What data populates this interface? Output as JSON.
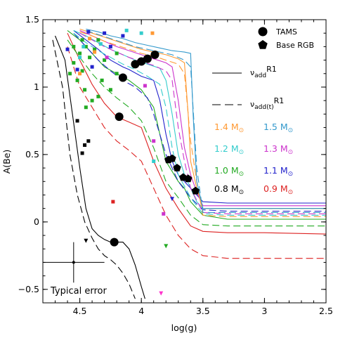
{
  "chart_data": {
    "type": "scatter",
    "title": "",
    "xlabel": "log(g)",
    "ylabel": "A(Be)",
    "xlim": [
      4.8,
      2.5
    ],
    "ylim": [
      -0.6,
      1.5
    ],
    "x_reversed": true,
    "x_ticks": [
      {
        "value": 4.5,
        "label": "4.5"
      },
      {
        "value": 4.0,
        "label": "4"
      },
      {
        "value": 3.5,
        "label": "3.5"
      },
      {
        "value": 3.0,
        "label": "3"
      },
      {
        "value": 2.5,
        "label": "2.5"
      }
    ],
    "y_ticks": [
      {
        "value": 1.5,
        "label": "1.5"
      },
      {
        "value": 1.0,
        "label": "1"
      },
      {
        "value": 0.5,
        "label": "0.5"
      },
      {
        "value": 0.0,
        "label": "0"
      },
      {
        "value": -0.5,
        "label": "−0.5"
      }
    ],
    "legend": {
      "placement": "top-right",
      "markers": [
        {
          "label": "TAMS",
          "symbol": "circle"
        },
        {
          "label": "Base RGB",
          "symbol": "pentagon"
        }
      ],
      "lines": [
        {
          "label_main": "ν",
          "label_sub": "add",
          "label_suffix": "R1",
          "style": "solid"
        },
        {
          "label_main": "ν",
          "label_sub": "add(t)",
          "label_suffix": "R1",
          "style": "dashed"
        }
      ],
      "masses": [
        {
          "label": "1.4 M",
          "sym": "⊙",
          "color": "#ff9933"
        },
        {
          "label": "1.5 M",
          "sym": "⊙",
          "color": "#3399cc"
        },
        {
          "label": "1.2 M",
          "sym": "⊙",
          "color": "#33cccc"
        },
        {
          "label": "1.3 M",
          "sym": "⊙",
          "color": "#cc33cc"
        },
        {
          "label": "1.0 M",
          "sym": "⊙",
          "color": "#22aa22"
        },
        {
          "label": "1.1 M",
          "sym": "⊙",
          "color": "#2222cc"
        },
        {
          "label": "0.8 M",
          "sym": "⊙",
          "color": "#000000"
        },
        {
          "label": "0.9 M",
          "sym": "⊙",
          "color": "#dd2222"
        }
      ]
    },
    "annotation": {
      "text": "Typical error",
      "x": 4.55,
      "y": -0.3,
      "xerr": 0.25,
      "yerr": 0.15
    },
    "series": [
      {
        "mass": 0.8,
        "color": "#000000",
        "style": "solid",
        "x": [
          4.7,
          4.62,
          4.56,
          4.5,
          4.45,
          4.4,
          4.35,
          4.3,
          4.25,
          4.22,
          4.15,
          4.1,
          4.05,
          4.0,
          3.97
        ],
        "y": [
          1.38,
          1.2,
          0.8,
          0.4,
          0.1,
          -0.05,
          -0.1,
          -0.13,
          -0.15,
          -0.15,
          -0.15,
          -0.2,
          -0.32,
          -0.48,
          -0.57
        ]
      },
      {
        "mass": 0.8,
        "color": "#000000",
        "style": "dashed",
        "x": [
          4.72,
          4.64,
          4.58,
          4.52,
          4.46,
          4.4,
          4.35,
          4.3,
          4.25,
          4.2,
          4.15,
          4.1,
          4.05
        ],
        "y": [
          1.35,
          1.0,
          0.5,
          0.2,
          0.0,
          -0.12,
          -0.2,
          -0.25,
          -0.28,
          -0.32,
          -0.38,
          -0.46,
          -0.57
        ]
      },
      {
        "mass": 0.9,
        "color": "#dd2222",
        "style": "solid",
        "x": [
          4.6,
          4.5,
          4.4,
          4.3,
          4.2,
          4.15,
          4.1,
          4.0,
          3.9,
          3.8,
          3.7,
          3.6,
          3.5,
          3.3,
          3.0,
          2.5
        ],
        "y": [
          1.4,
          1.2,
          1.02,
          0.88,
          0.78,
          0.76,
          0.74,
          0.7,
          0.45,
          0.25,
          0.1,
          -0.03,
          -0.07,
          -0.08,
          -0.08,
          -0.09
        ]
      },
      {
        "mass": 0.9,
        "color": "#dd2222",
        "style": "dashed",
        "x": [
          4.6,
          4.5,
          4.4,
          4.3,
          4.2,
          4.1,
          4.0,
          3.9,
          3.8,
          3.7,
          3.6,
          3.5,
          3.3,
          3.0,
          2.5
        ],
        "y": [
          1.3,
          1.0,
          0.85,
          0.7,
          0.6,
          0.53,
          0.45,
          0.25,
          0.05,
          -0.1,
          -0.2,
          -0.25,
          -0.27,
          -0.27,
          -0.27
        ]
      },
      {
        "mass": 1.0,
        "color": "#22aa22",
        "style": "solid",
        "x": [
          4.6,
          4.5,
          4.4,
          4.3,
          4.2,
          4.1,
          4.0,
          3.9,
          3.85,
          3.8,
          3.7,
          3.65,
          3.6,
          3.5,
          3.3,
          3.0,
          2.5
        ],
        "y": [
          1.42,
          1.35,
          1.25,
          1.15,
          1.1,
          1.05,
          0.98,
          0.85,
          0.65,
          0.45,
          0.3,
          0.25,
          0.15,
          0.05,
          0.02,
          0.02,
          0.02
        ]
      },
      {
        "mass": 1.0,
        "color": "#22aa22",
        "style": "dashed",
        "x": [
          4.6,
          4.5,
          4.4,
          4.3,
          4.2,
          4.1,
          4.0,
          3.9,
          3.8,
          3.7,
          3.6,
          3.5,
          3.3,
          3.0,
          2.5
        ],
        "y": [
          1.35,
          1.22,
          1.1,
          1.0,
          0.92,
          0.85,
          0.75,
          0.55,
          0.3,
          0.18,
          0.05,
          -0.02,
          -0.03,
          -0.03,
          -0.03
        ]
      },
      {
        "mass": 1.1,
        "color": "#2222cc",
        "style": "solid",
        "x": [
          4.55,
          4.45,
          4.35,
          4.25,
          4.15,
          4.1,
          4.0,
          3.9,
          3.85,
          3.8,
          3.75,
          3.7,
          3.6,
          3.5,
          3.3,
          3.0,
          2.5
        ],
        "y": [
          1.42,
          1.35,
          1.28,
          1.2,
          1.15,
          1.13,
          1.08,
          1.05,
          0.9,
          0.65,
          0.45,
          0.35,
          0.25,
          0.15,
          0.14,
          0.14,
          0.14
        ]
      },
      {
        "mass": 1.1,
        "color": "#2222cc",
        "style": "dashed",
        "x": [
          4.55,
          4.45,
          4.35,
          4.25,
          4.15,
          4.05,
          3.95,
          3.9,
          3.8,
          3.7,
          3.6,
          3.5,
          3.3,
          3.0,
          2.5
        ],
        "y": [
          1.4,
          1.3,
          1.2,
          1.12,
          1.05,
          1.0,
          0.92,
          0.8,
          0.5,
          0.3,
          0.18,
          0.09,
          0.08,
          0.08,
          0.08
        ]
      },
      {
        "mass": 1.2,
        "color": "#33cccc",
        "style": "solid",
        "x": [
          4.55,
          4.45,
          4.35,
          4.25,
          4.15,
          4.05,
          3.95,
          3.85,
          3.8,
          3.75,
          3.7,
          3.65,
          3.6,
          3.55,
          3.5,
          3.3,
          3.0,
          2.5
        ],
        "y": [
          1.42,
          1.38,
          1.33,
          1.28,
          1.24,
          1.2,
          1.17,
          1.14,
          1.05,
          0.8,
          0.5,
          0.35,
          0.25,
          0.15,
          0.1,
          0.1,
          0.1,
          0.1
        ]
      },
      {
        "mass": 1.2,
        "color": "#33cccc",
        "style": "dashed",
        "x": [
          4.55,
          4.45,
          4.35,
          4.25,
          4.15,
          4.05,
          3.95,
          3.85,
          3.8,
          3.75,
          3.7,
          3.6,
          3.5,
          3.3,
          3.0,
          2.5
        ],
        "y": [
          1.4,
          1.33,
          1.27,
          1.22,
          1.17,
          1.13,
          1.08,
          1.02,
          0.85,
          0.55,
          0.35,
          0.18,
          0.06,
          0.05,
          0.05,
          0.05
        ]
      },
      {
        "mass": 1.3,
        "color": "#cc33cc",
        "style": "solid",
        "x": [
          4.5,
          4.4,
          4.3,
          4.2,
          4.1,
          4.0,
          3.9,
          3.8,
          3.75,
          3.7,
          3.65,
          3.6,
          3.55,
          3.5,
          3.3,
          3.0,
          2.5
        ],
        "y": [
          1.42,
          1.38,
          1.34,
          1.3,
          1.27,
          1.24,
          1.21,
          1.18,
          1.15,
          0.9,
          0.55,
          0.35,
          0.22,
          0.12,
          0.12,
          0.12,
          0.12
        ]
      },
      {
        "mass": 1.3,
        "color": "#cc33cc",
        "style": "dashed",
        "x": [
          4.5,
          4.4,
          4.3,
          4.2,
          4.1,
          4.0,
          3.9,
          3.8,
          3.75,
          3.7,
          3.65,
          3.6,
          3.5,
          3.3,
          3.0,
          2.5
        ],
        "y": [
          1.4,
          1.35,
          1.3,
          1.26,
          1.22,
          1.19,
          1.16,
          1.12,
          1.05,
          0.7,
          0.45,
          0.25,
          0.07,
          0.06,
          0.06,
          0.06
        ]
      },
      {
        "mass": 1.4,
        "color": "#ff9933",
        "style": "solid",
        "x": [
          4.5,
          4.4,
          4.3,
          4.2,
          4.1,
          4.0,
          3.9,
          3.8,
          3.7,
          3.65,
          3.62,
          3.6,
          3.55,
          3.5,
          3.3,
          3.0,
          2.5
        ],
        "y": [
          1.43,
          1.4,
          1.37,
          1.34,
          1.31,
          1.28,
          1.26,
          1.24,
          1.21,
          1.18,
          0.8,
          0.45,
          0.25,
          0.1,
          0.1,
          0.1,
          0.1
        ]
      },
      {
        "mass": 1.4,
        "color": "#ff9933",
        "style": "dashed",
        "x": [
          4.5,
          4.4,
          4.3,
          4.2,
          4.1,
          4.0,
          3.9,
          3.8,
          3.7,
          3.65,
          3.6,
          3.55,
          3.5,
          3.3,
          3.0,
          2.5
        ],
        "y": [
          1.41,
          1.38,
          1.34,
          1.31,
          1.28,
          1.25,
          1.23,
          1.2,
          1.17,
          1.1,
          0.6,
          0.3,
          0.05,
          0.04,
          0.04,
          0.04
        ]
      },
      {
        "mass": 1.5,
        "color": "#3399cc",
        "style": "solid",
        "x": [
          4.45,
          4.35,
          4.25,
          4.15,
          4.05,
          3.95,
          3.85,
          3.75,
          3.65,
          3.6,
          3.58,
          3.55,
          3.5,
          3.3,
          3.0,
          2.5
        ],
        "y": [
          1.43,
          1.41,
          1.38,
          1.36,
          1.33,
          1.31,
          1.29,
          1.27,
          1.26,
          1.25,
          0.8,
          0.3,
          0.1,
          0.1,
          0.1,
          0.1
        ]
      },
      {
        "mass": 1.5,
        "color": "#3399cc",
        "style": "dashed",
        "x": [
          4.45,
          4.35,
          4.25,
          4.15,
          4.05,
          3.95,
          3.85,
          3.75,
          3.65,
          3.6,
          3.55,
          3.5,
          3.3,
          3.0,
          2.5
        ],
        "y": [
          1.42,
          1.39,
          1.36,
          1.33,
          1.3,
          1.28,
          1.26,
          1.24,
          1.2,
          1.15,
          0.4,
          0.07,
          0.07,
          0.07,
          0.07
        ]
      }
    ],
    "tams_points": [
      {
        "x": 4.22,
        "y": -0.15
      },
      {
        "x": 4.18,
        "y": 0.78
      },
      {
        "x": 4.15,
        "y": 1.07
      },
      {
        "x": 4.05,
        "y": 1.17
      },
      {
        "x": 4.0,
        "y": 1.19
      },
      {
        "x": 3.95,
        "y": 1.21
      },
      {
        "x": 3.89,
        "y": 1.24
      }
    ],
    "rgb_points": [
      {
        "x": 3.78,
        "y": 0.46
      },
      {
        "x": 3.75,
        "y": 0.47
      },
      {
        "x": 3.71,
        "y": 0.4
      },
      {
        "x": 3.66,
        "y": 0.33
      },
      {
        "x": 3.62,
        "y": 0.32
      },
      {
        "x": 3.56,
        "y": 0.23
      }
    ],
    "stars": [
      {
        "x": 4.48,
        "y": 1.35,
        "color": "#22aa22",
        "shape": "square"
      },
      {
        "x": 4.45,
        "y": 1.3,
        "color": "#22aa22",
        "shape": "square"
      },
      {
        "x": 4.5,
        "y": 1.25,
        "color": "#22aa22",
        "shape": "square"
      },
      {
        "x": 4.42,
        "y": 1.22,
        "color": "#22aa22",
        "shape": "square"
      },
      {
        "x": 4.55,
        "y": 1.18,
        "color": "#22aa22",
        "shape": "square"
      },
      {
        "x": 4.48,
        "y": 1.12,
        "color": "#22aa22",
        "shape": "square"
      },
      {
        "x": 4.52,
        "y": 1.05,
        "color": "#22aa22",
        "shape": "square"
      },
      {
        "x": 4.46,
        "y": 0.98,
        "color": "#22aa22",
        "shape": "square"
      },
      {
        "x": 4.38,
        "y": 1.28,
        "color": "#22aa22",
        "shape": "square"
      },
      {
        "x": 4.35,
        "y": 1.35,
        "color": "#22aa22",
        "shape": "square"
      },
      {
        "x": 4.3,
        "y": 1.2,
        "color": "#22aa22",
        "shape": "square"
      },
      {
        "x": 4.32,
        "y": 1.05,
        "color": "#22aa22",
        "shape": "square"
      },
      {
        "x": 4.25,
        "y": 0.98,
        "color": "#22aa22",
        "shape": "square"
      },
      {
        "x": 4.2,
        "y": 1.1,
        "color": "#22aa22",
        "shape": "square"
      },
      {
        "x": 4.4,
        "y": 0.9,
        "color": "#22aa22",
        "shape": "square"
      },
      {
        "x": 4.45,
        "y": 0.85,
        "color": "#22aa22",
        "shape": "square"
      },
      {
        "x": 4.35,
        "y": 0.93,
        "color": "#22aa22",
        "shape": "square"
      },
      {
        "x": 4.58,
        "y": 1.1,
        "color": "#22aa22",
        "shape": "square"
      },
      {
        "x": 4.55,
        "y": 1.3,
        "color": "#22aa22",
        "shape": "square"
      },
      {
        "x": 4.2,
        "y": 1.25,
        "color": "#22aa22",
        "shape": "square"
      },
      {
        "x": 4.43,
        "y": 1.41,
        "color": "#2222cc",
        "shape": "square"
      },
      {
        "x": 4.3,
        "y": 1.4,
        "color": "#2222cc",
        "shape": "square"
      },
      {
        "x": 4.25,
        "y": 1.3,
        "color": "#2222cc",
        "shape": "square"
      },
      {
        "x": 4.52,
        "y": 1.13,
        "color": "#2222cc",
        "shape": "square"
      },
      {
        "x": 4.4,
        "y": 1.15,
        "color": "#2222cc",
        "shape": "square"
      },
      {
        "x": 4.15,
        "y": 1.38,
        "color": "#2222cc",
        "shape": "square"
      },
      {
        "x": 4.6,
        "y": 1.28,
        "color": "#2222cc",
        "shape": "square"
      },
      {
        "x": 4.5,
        "y": 1.22,
        "color": "#33cccc",
        "shape": "square"
      },
      {
        "x": 4.47,
        "y": 1.3,
        "color": "#33cccc",
        "shape": "square"
      },
      {
        "x": 4.33,
        "y": 1.32,
        "color": "#33cccc",
        "shape": "square"
      },
      {
        "x": 4.12,
        "y": 1.42,
        "color": "#33cccc",
        "shape": "square"
      },
      {
        "x": 4.0,
        "y": 1.4,
        "color": "#33cccc",
        "shape": "square"
      },
      {
        "x": 4.42,
        "y": 1.36,
        "color": "#ff9933",
        "shape": "square"
      },
      {
        "x": 4.38,
        "y": 1.26,
        "color": "#ff9933",
        "shape": "square"
      },
      {
        "x": 4.5,
        "y": 1.1,
        "color": "#ff9933",
        "shape": "square"
      },
      {
        "x": 3.91,
        "y": 1.4,
        "color": "#ff9933",
        "shape": "square"
      },
      {
        "x": 4.28,
        "y": 1.22,
        "color": "#cc33cc",
        "shape": "square"
      },
      {
        "x": 3.97,
        "y": 1.01,
        "color": "#cc33cc",
        "shape": "square"
      },
      {
        "x": 3.9,
        "y": 0.6,
        "color": "#cc33cc",
        "shape": "square"
      },
      {
        "x": 3.82,
        "y": 0.06,
        "color": "#cc33cc",
        "shape": "square"
      },
      {
        "x": 4.52,
        "y": 0.75,
        "color": "#000000",
        "shape": "square"
      },
      {
        "x": 4.46,
        "y": 0.57,
        "color": "#000000",
        "shape": "square"
      },
      {
        "x": 4.43,
        "y": 0.6,
        "color": "#000000",
        "shape": "square"
      },
      {
        "x": 4.48,
        "y": 0.51,
        "color": "#000000",
        "shape": "square"
      },
      {
        "x": 4.23,
        "y": 0.15,
        "color": "#dd2222",
        "shape": "square"
      },
      {
        "x": 3.9,
        "y": 0.45,
        "color": "#33cccc",
        "shape": "square"
      },
      {
        "x": 4.45,
        "y": -0.14,
        "color": "#000000",
        "shape": "triangle-down"
      },
      {
        "x": 3.8,
        "y": -0.18,
        "color": "#22aa22",
        "shape": "triangle-down"
      },
      {
        "x": 3.75,
        "y": 0.17,
        "color": "#2222cc",
        "shape": "triangle-down"
      },
      {
        "x": 3.84,
        "y": -0.53,
        "color": "#ff33cc",
        "shape": "triangle-down"
      }
    ]
  }
}
